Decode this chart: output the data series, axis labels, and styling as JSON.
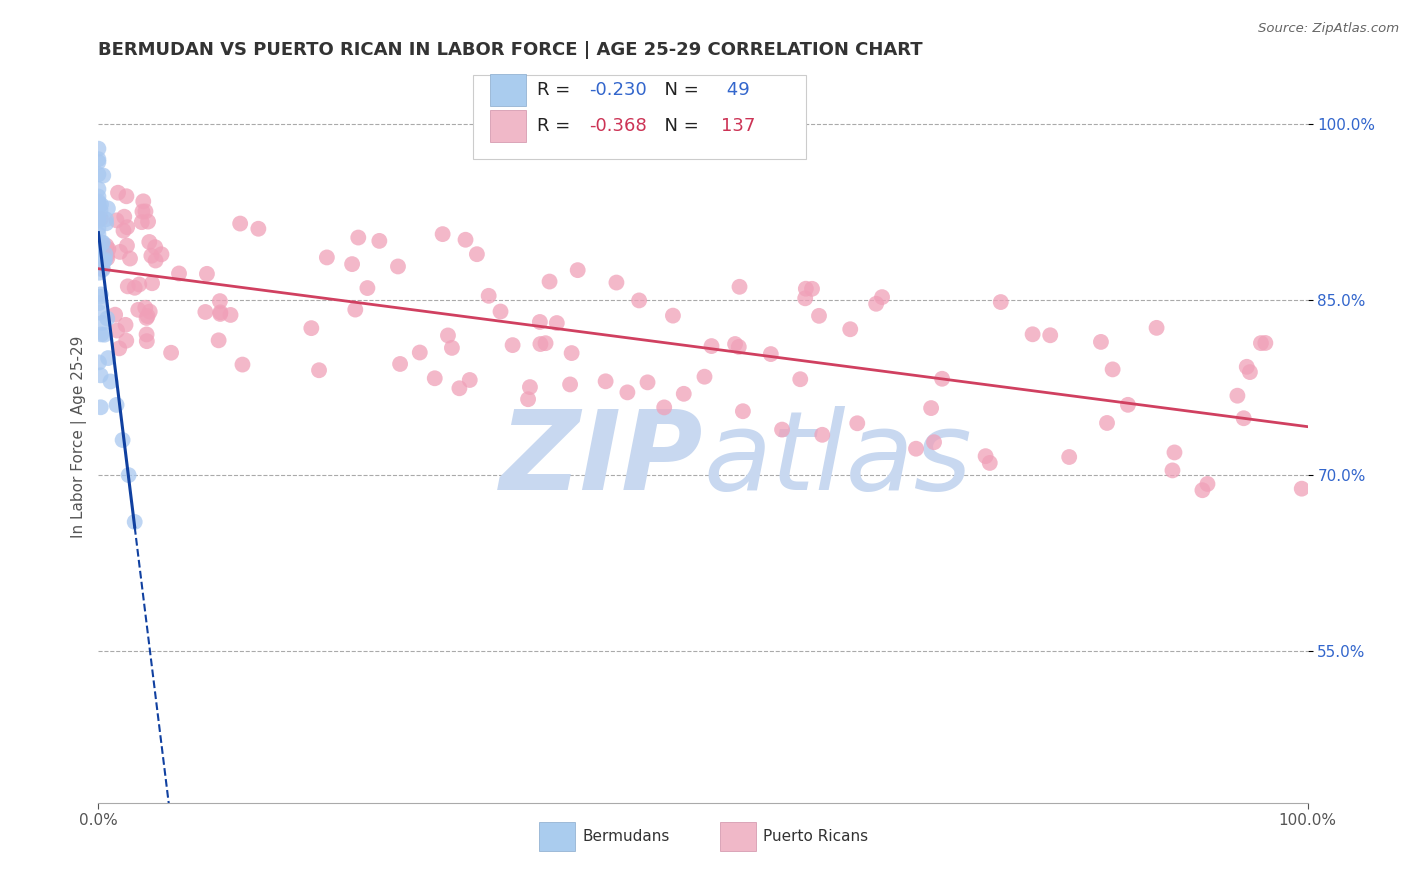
{
  "title": "BERMUDAN VS PUERTO RICAN IN LABOR FORCE | AGE 25-29 CORRELATION CHART",
  "source": "Source: ZipAtlas.com",
  "ylabel": "In Labor Force | Age 25-29",
  "bermudan_R": -0.23,
  "bermudan_N": 49,
  "puertoRican_R": -0.368,
  "puertoRican_N": 137,
  "legend_label_1": "Bermudans",
  "legend_label_2": "Puerto Ricans",
  "scatter_blue_color": "#A8C8F0",
  "scatter_pink_color": "#F0A0B8",
  "line_blue_color": "#1040A0",
  "line_pink_color": "#D04060",
  "watermark_color": "#C8D8F0",
  "background_color": "#FFFFFF",
  "legend_bg": "#FFFFFF",
  "legend_edge": "#CCCCCC",
  "tick_color": "#3366CC",
  "title_color": "#333333",
  "source_color": "#666666",
  "y_ticks": [
    0.55,
    0.7,
    0.85,
    1.0
  ],
  "y_tick_labels": [
    "55.0%",
    "70.0%",
    "85.0%",
    "100.0%"
  ],
  "xlim": [
    0.0,
    1.0
  ],
  "ylim": [
    0.42,
    1.045
  ]
}
